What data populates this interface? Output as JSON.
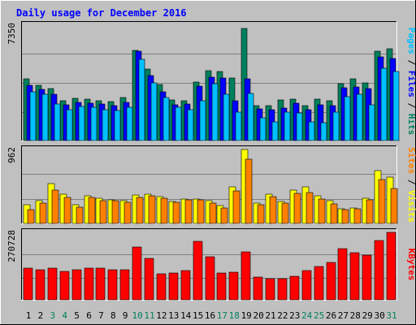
{
  "chart_data": [
    {
      "type": "bar",
      "title": "Daily usage for December 2016",
      "panel": "top",
      "ymax_label": "7350",
      "ylim": [
        0,
        7350
      ],
      "right_labels": [
        "Pages",
        "Files",
        "Hits"
      ],
      "categories": [
        "1",
        "2",
        "3",
        "4",
        "5",
        "6",
        "7",
        "8",
        "9",
        "10",
        "11",
        "12",
        "13",
        "14",
        "15",
        "16",
        "17",
        "18",
        "19",
        "20",
        "21",
        "22",
        "23",
        "24",
        "25",
        "26",
        "27",
        "28",
        "29",
        "30",
        "31"
      ],
      "weekend_days": [
        "3",
        "4",
        "10",
        "11",
        "17",
        "18",
        "24",
        "25",
        "31"
      ],
      "series": [
        {
          "name": "Hits",
          "color": "#00805c",
          "values": [
            3930,
            3530,
            3320,
            2560,
            2700,
            2660,
            2560,
            2480,
            2730,
            5770,
            4570,
            3570,
            2580,
            2520,
            3740,
            4430,
            4420,
            3960,
            7130,
            2250,
            2250,
            2580,
            2650,
            2210,
            2620,
            2520,
            3620,
            3930,
            3660,
            5680,
            5830
          ]
        },
        {
          "name": "Files",
          "color": "#0000ff",
          "values": [
            3540,
            3240,
            2930,
            2290,
            2450,
            2400,
            2330,
            2200,
            2450,
            5680,
            4140,
            3100,
            2300,
            2330,
            3480,
            4020,
            3990,
            2540,
            3950,
            2010,
            1980,
            2050,
            2380,
            1970,
            2270,
            2240,
            3370,
            3440,
            3300,
            5340,
            5220
          ]
        },
        {
          "name": "Pages",
          "color": "#00c0ff",
          "values": [
            3120,
            2970,
            2320,
            1970,
            2170,
            2110,
            1980,
            1920,
            2100,
            5170,
            3690,
            2730,
            2100,
            1970,
            2550,
            3610,
            2950,
            1810,
            3000,
            1430,
            1180,
            1790,
            1780,
            1180,
            1160,
            1830,
            2800,
            2930,
            2290,
            4610,
            4390
          ]
        }
      ]
    },
    {
      "type": "bar",
      "panel": "middle",
      "ymax_label": "962",
      "ylim": [
        0,
        962
      ],
      "right_labels": [
        "Sites",
        "Visits"
      ],
      "categories": [
        "1",
        "2",
        "3",
        "4",
        "5",
        "6",
        "7",
        "8",
        "9",
        "10",
        "11",
        "12",
        "13",
        "14",
        "15",
        "16",
        "17",
        "18",
        "19",
        "20",
        "21",
        "22",
        "23",
        "24",
        "25",
        "26",
        "27",
        "28",
        "29",
        "30",
        "31"
      ],
      "series": [
        {
          "name": "Visits",
          "color": "#ffff00",
          "values": [
            247,
            297,
            520,
            383,
            247,
            355,
            330,
            305,
            301,
            365,
            385,
            353,
            285,
            318,
            318,
            295,
            230,
            472,
            962,
            260,
            385,
            286,
            430,
            480,
            358,
            300,
            190,
            205,
            330,
            690,
            600
          ]
        },
        {
          "name": "Sites",
          "color": "#ff8000",
          "values": [
            175,
            265,
            435,
            340,
            215,
            337,
            301,
            300,
            280,
            335,
            360,
            327,
            270,
            302,
            304,
            267,
            203,
            425,
            835,
            240,
            350,
            265,
            395,
            405,
            320,
            250,
            175,
            185,
            310,
            570,
            450
          ]
        }
      ]
    },
    {
      "type": "bar",
      "panel": "bottom",
      "ymax_label": "270728",
      "ylim": [
        0,
        270728
      ],
      "right_labels": [
        "KBytes"
      ],
      "categories": [
        "1",
        "2",
        "3",
        "4",
        "5",
        "6",
        "7",
        "8",
        "9",
        "10",
        "11",
        "12",
        "13",
        "14",
        "15",
        "16",
        "17",
        "18",
        "19",
        "20",
        "21",
        "22",
        "23",
        "24",
        "25",
        "26",
        "27",
        "28",
        "29",
        "30",
        "31"
      ],
      "series": [
        {
          "name": "KBytes",
          "color": "#ff0000",
          "values": [
            128000,
            120000,
            128000,
            113000,
            120000,
            128000,
            128000,
            120000,
            120000,
            211000,
            166000,
            104000,
            109000,
            116000,
            234000,
            173000,
            109000,
            112000,
            194000,
            91000,
            86000,
            86000,
            96000,
            116000,
            135000,
            151000,
            206000,
            188000,
            180000,
            239000,
            270728
          ]
        }
      ]
    }
  ]
}
